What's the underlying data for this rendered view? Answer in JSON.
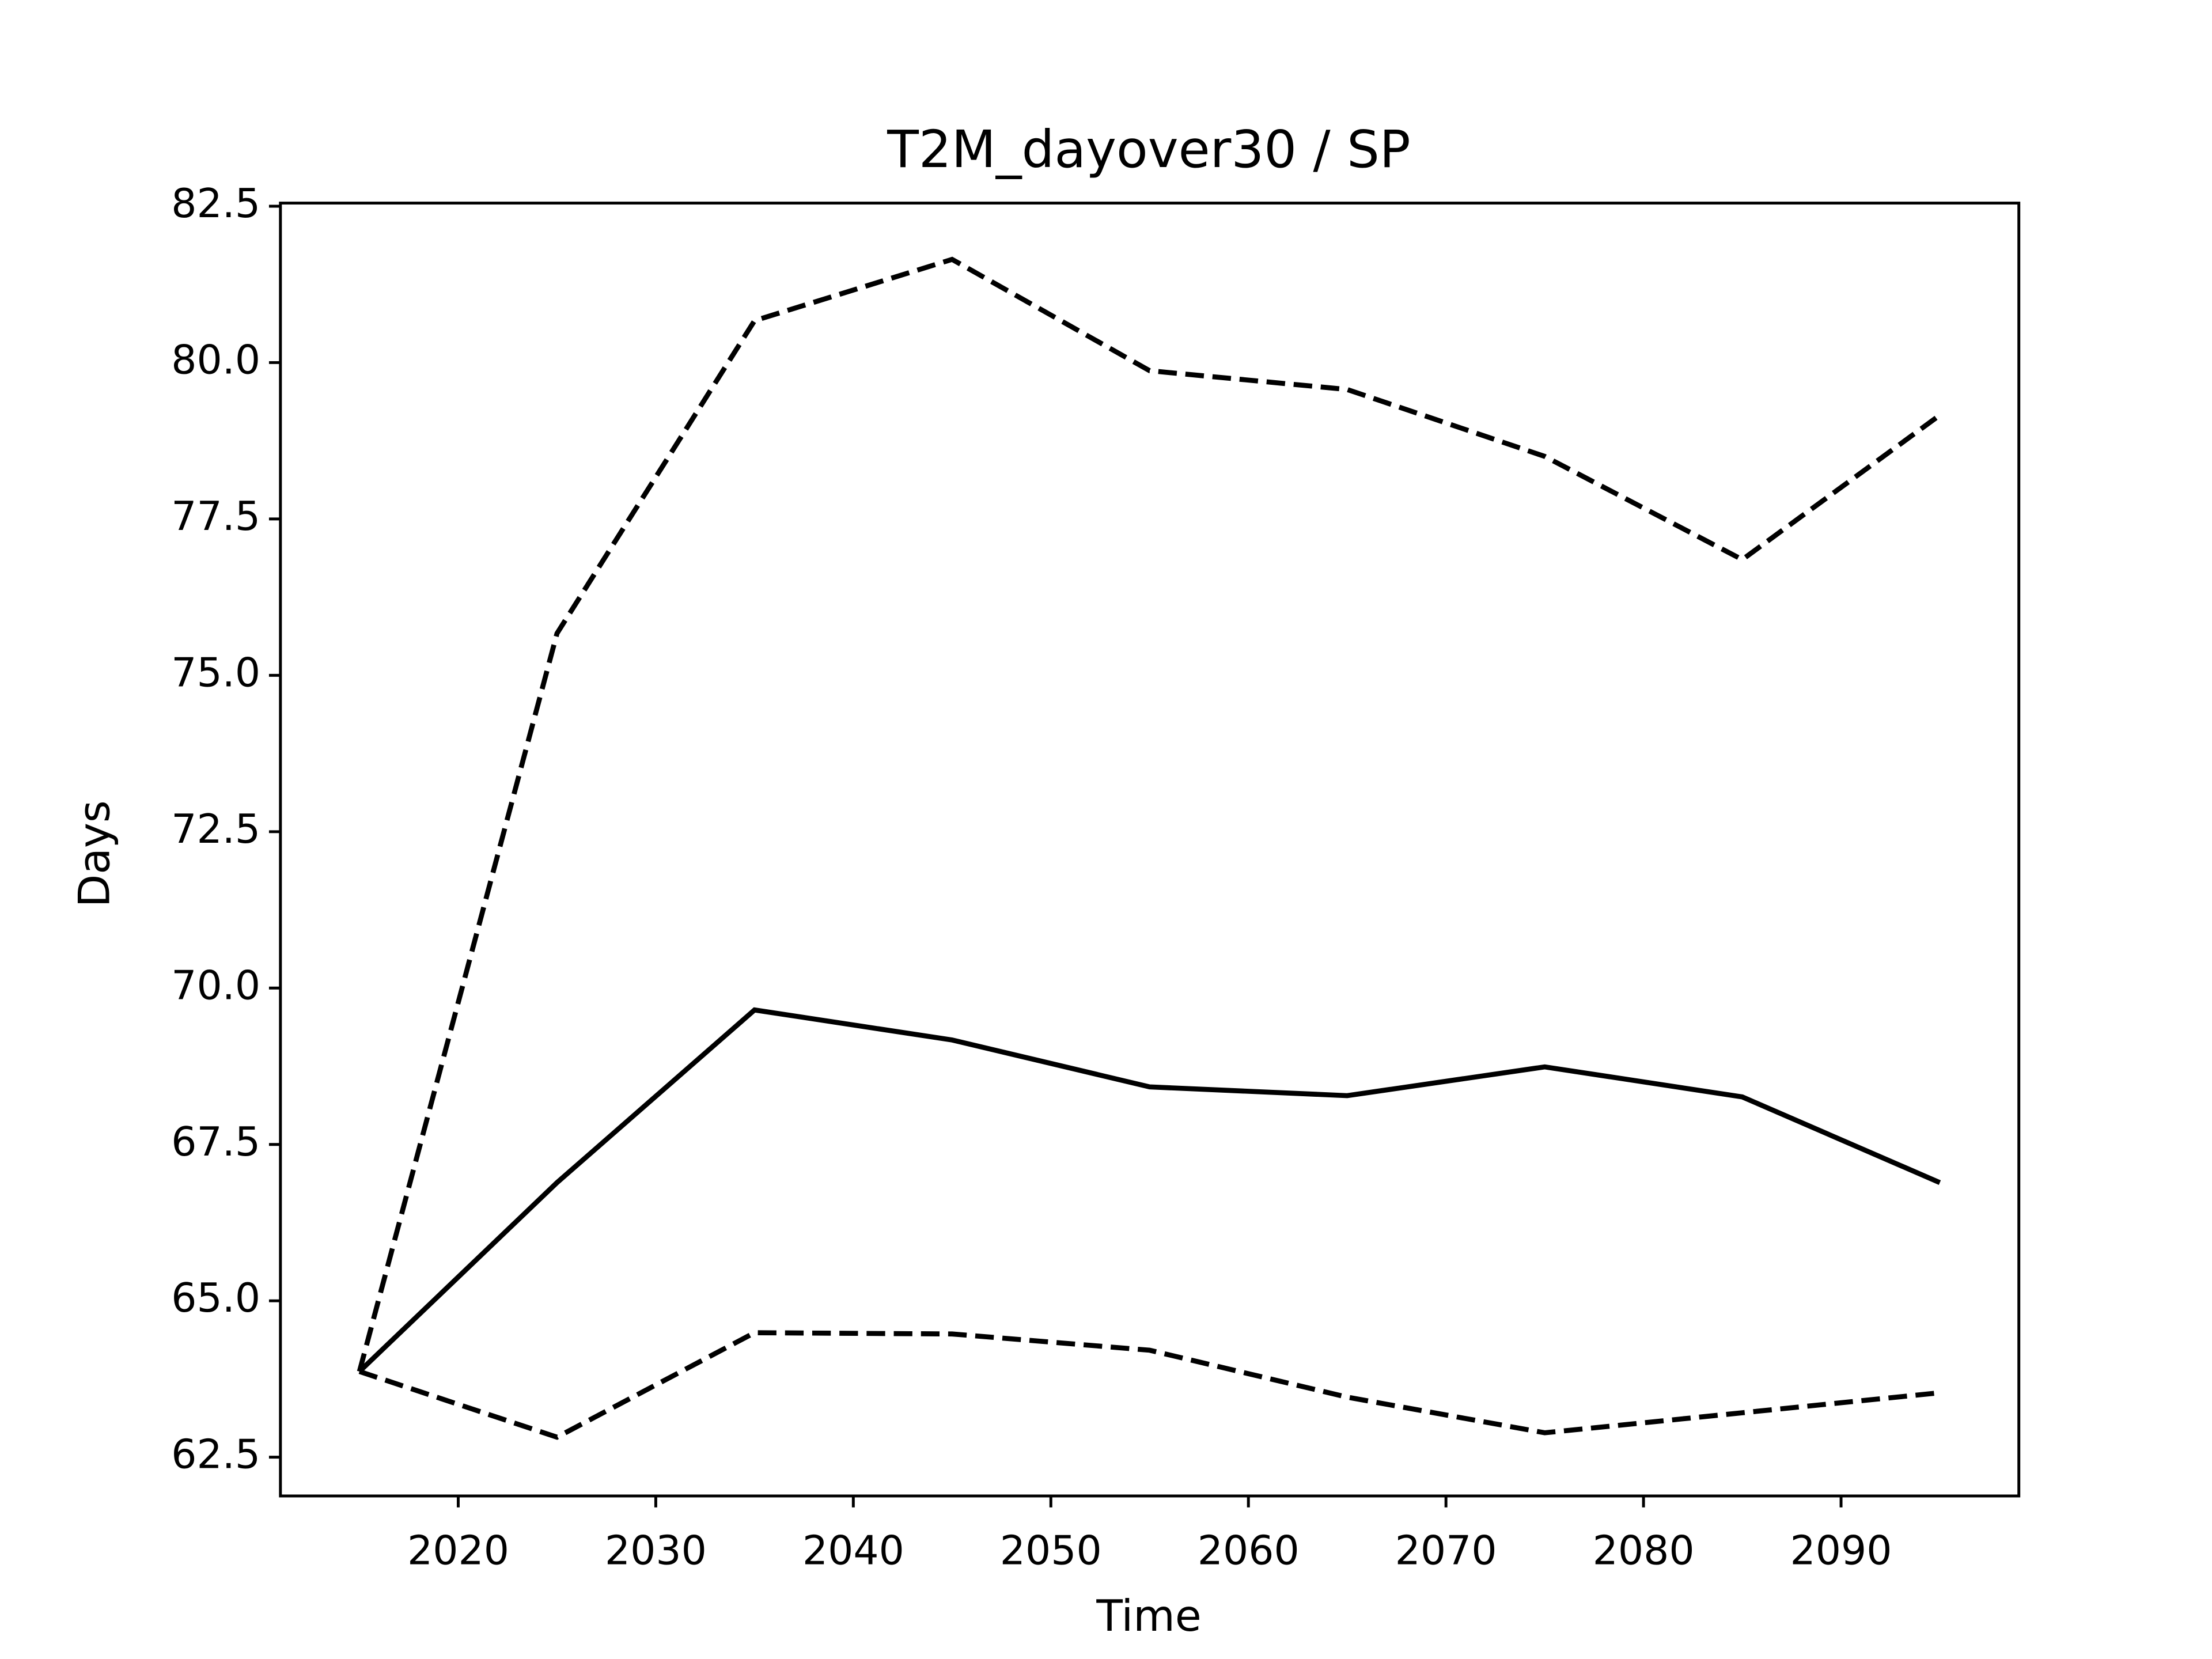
{
  "chart_data": {
    "type": "line",
    "title": "T2M_dayover30 / SP",
    "x_label": "Time",
    "y_label": "Days",
    "x": [
      2015,
      2025,
      2035,
      2045,
      2055,
      2065,
      2075,
      2085,
      2095
    ],
    "series": [
      {
        "color": "#000000",
        "dashed": false,
        "values": [
          63.87,
          66.89,
          69.65,
          69.17,
          68.42,
          68.28,
          68.74,
          68.26,
          66.89
        ]
      },
      {
        "color": "#000000",
        "dashed": true,
        "values": [
          63.87,
          75.67,
          80.67,
          81.65,
          79.87,
          79.57,
          78.5,
          76.85,
          79.16
        ]
      },
      {
        "color": "#000000",
        "dashed": true,
        "values": [
          63.87,
          62.82,
          64.49,
          64.47,
          64.21,
          63.46,
          62.89,
          63.21,
          63.53
        ]
      }
    ],
    "xlim": [
      2011,
      2099
    ],
    "xticks": [
      2020,
      2030,
      2040,
      2050,
      2060,
      2070,
      2080,
      2090
    ],
    "ylim": [
      61.88,
      82.55
    ],
    "yticks": [
      {
        "value": 62.5,
        "label": "62.5"
      },
      {
        "value": 65,
        "label": "65.0"
      },
      {
        "value": 67.5,
        "label": "67.5"
      },
      {
        "value": 70,
        "label": "70.0"
      },
      {
        "value": 72.5,
        "label": "72.5"
      },
      {
        "value": 75,
        "label": "75.0"
      },
      {
        "value": 77.5,
        "label": "77.5"
      },
      {
        "value": 80,
        "label": "80.0"
      },
      {
        "value": 82.5,
        "label": "82.5"
      }
    ],
    "grid": false
  }
}
